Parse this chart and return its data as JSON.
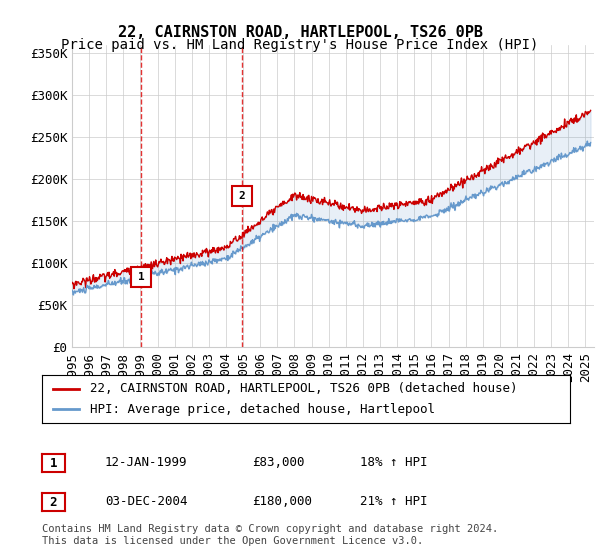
{
  "title": "22, CAIRNSTON ROAD, HARTLEPOOL, TS26 0PB",
  "subtitle": "Price paid vs. HM Land Registry's House Price Index (HPI)",
  "ylabel_ticks": [
    0,
    50000,
    100000,
    150000,
    200000,
    250000,
    300000,
    350000
  ],
  "ylabel_labels": [
    "£0",
    "£50K",
    "£100K",
    "£150K",
    "£200K",
    "£250K",
    "£300K",
    "£350K"
  ],
  "xlim": [
    1995.0,
    2025.5
  ],
  "ylim": [
    0,
    360000
  ],
  "vline1_x": 1999.04,
  "vline2_x": 2004.92,
  "marker1_x": 1999.04,
  "marker1_y": 83000,
  "marker2_x": 2004.92,
  "marker2_y": 180000,
  "red_color": "#cc0000",
  "blue_color": "#6699cc",
  "vline_color": "#dd0000",
  "background_color": "#ffffff",
  "grid_color": "#cccccc",
  "legend_entry1": "22, CAIRNSTON ROAD, HARTLEPOOL, TS26 0PB (detached house)",
  "legend_entry2": "HPI: Average price, detached house, Hartlepool",
  "table_row1": [
    "1",
    "12-JAN-1999",
    "£83,000",
    "18% ↑ HPI"
  ],
  "table_row2": [
    "2",
    "03-DEC-2004",
    "£180,000",
    "21% ↑ HPI"
  ],
  "footnote": "Contains HM Land Registry data © Crown copyright and database right 2024.\nThis data is licensed under the Open Government Licence v3.0.",
  "title_fontsize": 11,
  "subtitle_fontsize": 10,
  "tick_fontsize": 9,
  "legend_fontsize": 9,
  "table_fontsize": 9
}
